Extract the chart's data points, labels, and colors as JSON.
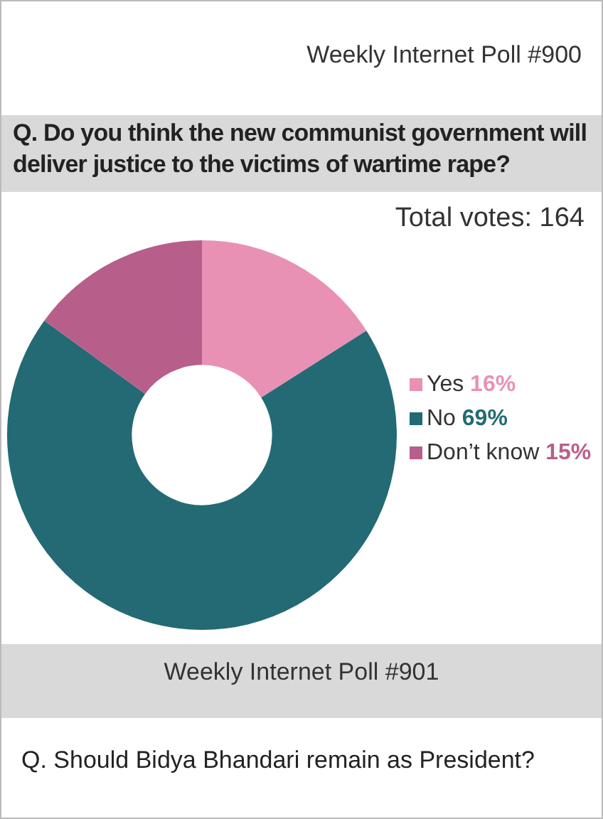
{
  "chart_data": {
    "type": "donut",
    "title": "Q. Do you think the new communist government will deliver justice to the victims of wartime rape?",
    "subtitle": "Weekly Internet Poll  #900",
    "categories": [
      "Yes",
      "No",
      "Don’t know"
    ],
    "values": [
      16,
      69,
      15
    ],
    "value_labels": [
      "16%",
      "69%",
      "15%"
    ],
    "colors": [
      "#e891b5",
      "#236a74",
      "#b85e8a"
    ],
    "legend": "right",
    "annotations": [
      "Total votes: 164",
      "Weekly Internet Poll  #901",
      "Q.  Should Bidya Bhandari remain as President?"
    ]
  }
}
